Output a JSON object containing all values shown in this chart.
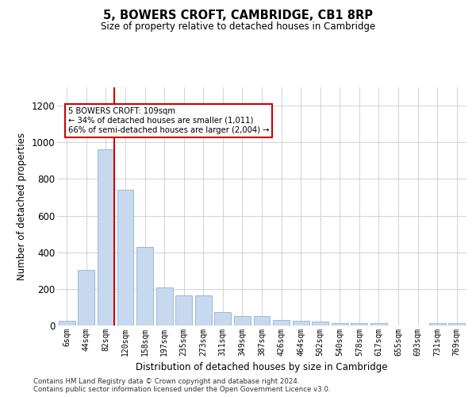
{
  "title": "5, BOWERS CROFT, CAMBRIDGE, CB1 8RP",
  "subtitle": "Size of property relative to detached houses in Cambridge",
  "xlabel": "Distribution of detached houses by size in Cambridge",
  "ylabel": "Number of detached properties",
  "bar_color": "#c8d8ee",
  "bar_edge_color": "#7aaad0",
  "vline_color": "#cc0000",
  "vline_bin_index": 2,
  "annotation_text": "5 BOWERS CROFT: 109sqm\n← 34% of detached houses are smaller (1,011)\n66% of semi-detached houses are larger (2,004) →",
  "categories": [
    "6sqm",
    "44sqm",
    "82sqm",
    "120sqm",
    "158sqm",
    "197sqm",
    "235sqm",
    "273sqm",
    "311sqm",
    "349sqm",
    "387sqm",
    "426sqm",
    "464sqm",
    "502sqm",
    "540sqm",
    "578sqm",
    "617sqm",
    "655sqm",
    "693sqm",
    "731sqm",
    "769sqm"
  ],
  "values": [
    25,
    305,
    960,
    740,
    430,
    210,
    165,
    165,
    75,
    50,
    50,
    30,
    25,
    20,
    15,
    15,
    15,
    0,
    0,
    12,
    15
  ],
  "ylim": [
    0,
    1300
  ],
  "yticks": [
    0,
    200,
    400,
    600,
    800,
    1000,
    1200
  ],
  "footnote1": "Contains HM Land Registry data © Crown copyright and database right 2024.",
  "footnote2": "Contains public sector information licensed under the Open Government Licence v3.0."
}
